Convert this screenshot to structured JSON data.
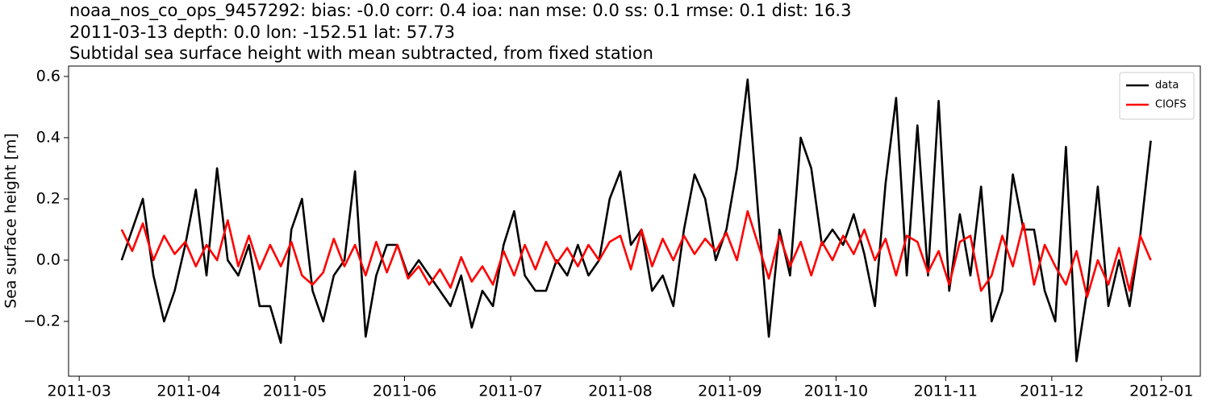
{
  "chart_data": {
    "type": "line",
    "title": "noaa_nos_co_ops_9457292: bias: -0.0  corr: 0.4  ioa: nan  mse: 0.0  ss: 0.1  rmse: 0.1  dist: 16.3",
    "subtitle": "2011-03-13 depth: 0.0 lon: -152.51 lat: 57.73",
    "description": "Subtidal sea surface height with mean subtracted, from fixed station",
    "y_label": "Sea surface height [m]",
    "x": [
      "2011-03-13",
      "2011-03-16",
      "2011-03-19",
      "2011-03-22",
      "2011-03-25",
      "2011-03-28",
      "2011-03-31",
      "2011-04-03",
      "2011-04-06",
      "2011-04-09",
      "2011-04-12",
      "2011-04-15",
      "2011-04-18",
      "2011-04-21",
      "2011-04-24",
      "2011-04-27",
      "2011-04-30",
      "2011-05-03",
      "2011-05-06",
      "2011-05-09",
      "2011-05-12",
      "2011-05-15",
      "2011-05-18",
      "2011-05-21",
      "2011-05-24",
      "2011-05-27",
      "2011-05-30",
      "2011-06-02",
      "2011-06-05",
      "2011-06-08",
      "2011-06-11",
      "2011-06-14",
      "2011-06-17",
      "2011-06-20",
      "2011-06-23",
      "2011-06-26",
      "2011-06-29",
      "2011-07-02",
      "2011-07-05",
      "2011-07-08",
      "2011-07-11",
      "2011-07-14",
      "2011-07-17",
      "2011-07-20",
      "2011-07-23",
      "2011-07-26",
      "2011-07-29",
      "2011-08-01",
      "2011-08-04",
      "2011-08-07",
      "2011-08-10",
      "2011-08-13",
      "2011-08-16",
      "2011-08-19",
      "2011-08-22",
      "2011-08-25",
      "2011-08-28",
      "2011-08-31",
      "2011-09-03",
      "2011-09-06",
      "2011-09-09",
      "2011-09-12",
      "2011-09-15",
      "2011-09-18",
      "2011-09-21",
      "2011-09-24",
      "2011-09-27",
      "2011-09-30",
      "2011-10-03",
      "2011-10-06",
      "2011-10-09",
      "2011-10-12",
      "2011-10-15",
      "2011-10-18",
      "2011-10-21",
      "2011-10-24",
      "2011-10-27",
      "2011-10-30",
      "2011-11-02",
      "2011-11-05",
      "2011-11-08",
      "2011-11-11",
      "2011-11-14",
      "2011-11-17",
      "2011-11-20",
      "2011-11-23",
      "2011-11-26",
      "2011-11-29",
      "2011-12-02",
      "2011-12-05",
      "2011-12-08",
      "2011-12-11",
      "2011-12-14",
      "2011-12-17",
      "2011-12-20",
      "2011-12-23",
      "2011-12-26",
      "2011-12-29"
    ],
    "series": [
      {
        "name": "data",
        "color": "#000000",
        "values": [
          0.0,
          0.1,
          0.2,
          -0.05,
          -0.2,
          -0.1,
          0.05,
          0.23,
          -0.05,
          0.3,
          0.0,
          -0.05,
          0.05,
          -0.15,
          -0.15,
          -0.27,
          0.1,
          0.2,
          -0.1,
          -0.2,
          -0.05,
          0.0,
          0.29,
          -0.25,
          -0.05,
          0.05,
          0.05,
          -0.05,
          0.0,
          -0.05,
          -0.1,
          -0.15,
          -0.05,
          -0.22,
          -0.1,
          -0.15,
          0.05,
          0.16,
          -0.05,
          -0.1,
          -0.1,
          0.0,
          -0.05,
          0.05,
          -0.05,
          0.0,
          0.2,
          0.29,
          0.05,
          0.1,
          -0.1,
          -0.05,
          -0.15,
          0.1,
          0.28,
          0.2,
          0.0,
          0.1,
          0.3,
          0.59,
          0.15,
          -0.25,
          0.1,
          -0.05,
          0.4,
          0.3,
          0.05,
          0.1,
          0.05,
          0.15,
          0.02,
          -0.15,
          0.25,
          0.53,
          -0.05,
          0.44,
          -0.05,
          0.52,
          -0.1,
          0.15,
          -0.05,
          0.24,
          -0.2,
          -0.1,
          0.28,
          0.1,
          0.1,
          -0.1,
          -0.2,
          0.37,
          -0.33,
          -0.1,
          0.24,
          -0.15,
          0.0,
          -0.15,
          0.08,
          0.39
        ]
      },
      {
        "name": "CIOFS",
        "color": "#ff0000",
        "values": [
          0.1,
          0.03,
          0.12,
          0.0,
          0.08,
          0.02,
          0.06,
          -0.02,
          0.05,
          0.0,
          0.13,
          -0.02,
          0.08,
          -0.03,
          0.05,
          -0.02,
          0.06,
          -0.05,
          -0.08,
          -0.04,
          0.07,
          -0.02,
          0.05,
          -0.05,
          0.06,
          -0.04,
          0.05,
          -0.06,
          -0.02,
          -0.08,
          -0.03,
          -0.09,
          0.01,
          -0.07,
          -0.02,
          -0.08,
          0.03,
          -0.05,
          0.05,
          -0.03,
          0.06,
          -0.01,
          0.04,
          -0.02,
          0.05,
          0.0,
          0.06,
          0.08,
          -0.03,
          0.1,
          -0.02,
          0.07,
          0.0,
          0.08,
          0.02,
          0.07,
          0.03,
          0.09,
          0.0,
          0.16,
          0.05,
          -0.06,
          0.08,
          -0.02,
          0.06,
          -0.05,
          0.06,
          0.0,
          0.08,
          0.02,
          0.1,
          0.0,
          0.07,
          -0.05,
          0.08,
          0.06,
          -0.04,
          0.03,
          -0.08,
          0.06,
          0.08,
          -0.1,
          -0.05,
          0.08,
          -0.02,
          0.12,
          -0.08,
          0.05,
          -0.02,
          -0.08,
          0.03,
          -0.12,
          0.0,
          -0.08,
          0.04,
          -0.1,
          0.08,
          0.0
        ]
      }
    ],
    "xlim": [
      "2011-02-26",
      "2012-01-12"
    ],
    "xticks": [
      {
        "value": "2011-03-01",
        "label": "2011-03"
      },
      {
        "value": "2011-04-01",
        "label": "2011-04"
      },
      {
        "value": "2011-05-01",
        "label": "2011-05"
      },
      {
        "value": "2011-06-01",
        "label": "2011-06"
      },
      {
        "value": "2011-07-01",
        "label": "2011-07"
      },
      {
        "value": "2011-08-01",
        "label": "2011-08"
      },
      {
        "value": "2011-09-01",
        "label": "2011-09"
      },
      {
        "value": "2011-10-01",
        "label": "2011-10"
      },
      {
        "value": "2011-11-01",
        "label": "2011-11"
      },
      {
        "value": "2011-12-01",
        "label": "2011-12"
      },
      {
        "value": "2012-01-01",
        "label": "2012-01"
      }
    ],
    "ylim": [
      -0.379,
      0.634
    ],
    "yticks": [
      {
        "value": -0.2,
        "label": "−0.2"
      },
      {
        "value": 0,
        "label": "0.0"
      },
      {
        "value": 0.2,
        "label": "0.2"
      },
      {
        "value": 0.4,
        "label": "0.4"
      },
      {
        "value": 0.6,
        "label": "0.6"
      }
    ],
    "legend": "upper right"
  }
}
